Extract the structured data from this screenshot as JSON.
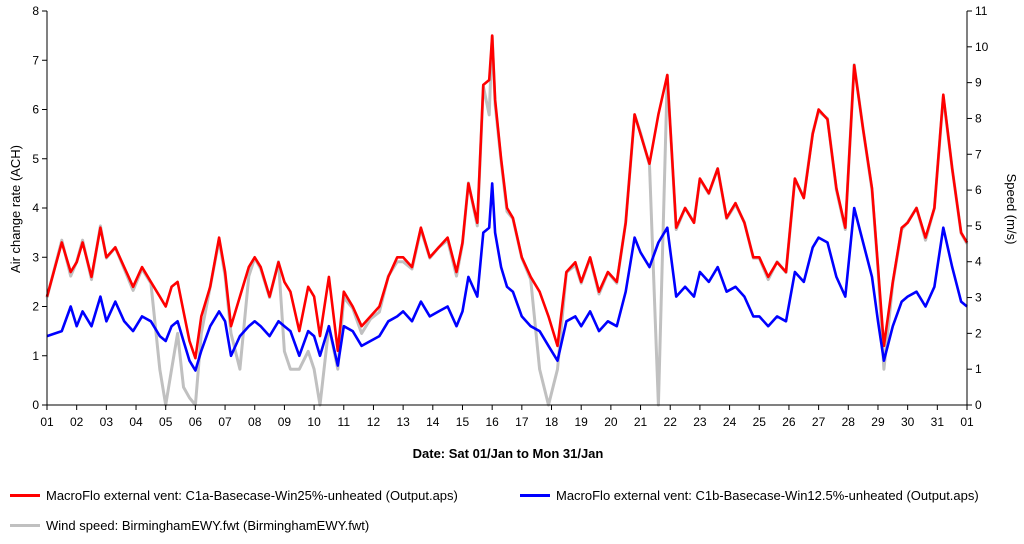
{
  "chart_data": {
    "type": "line",
    "xlabel": "Date: Sat 01/Jan to Mon 31/Jan",
    "ylabel_left": "Air change rate (ACH)",
    "ylabel_right": "Speed (m/s)",
    "ylim_left": [
      0,
      8
    ],
    "ylim_right": [
      0,
      11
    ],
    "yticks_left": [
      "0",
      "1",
      "2",
      "3",
      "4",
      "5",
      "6",
      "7",
      "8"
    ],
    "yticks_right": [
      "0",
      "1",
      "2",
      "3",
      "4",
      "5",
      "6",
      "7",
      "8",
      "9",
      "10",
      "11"
    ],
    "xticks": [
      "01",
      "02",
      "03",
      "04",
      "05",
      "06",
      "07",
      "08",
      "09",
      "10",
      "11",
      "12",
      "13",
      "14",
      "15",
      "16",
      "17",
      "18",
      "19",
      "20",
      "21",
      "22",
      "23",
      "24",
      "25",
      "26",
      "27",
      "28",
      "29",
      "30",
      "31",
      "01"
    ],
    "grid": false,
    "legend_position": "bottom",
    "series": [
      {
        "name": "MacroFlo external vent: C1a-Basecase-Win25%-unheated (Output.aps)",
        "color": "#ff0000",
        "axis": "left",
        "x": [
          0,
          0.5,
          0.8,
          1,
          1.2,
          1.5,
          1.8,
          2,
          2.3,
          2.6,
          2.9,
          3.2,
          3.5,
          3.8,
          4.0,
          4.2,
          4.4,
          4.6,
          4.8,
          5.0,
          5.2,
          5.5,
          5.8,
          6.0,
          6.2,
          6.5,
          6.8,
          7.0,
          7.2,
          7.5,
          7.8,
          8.0,
          8.2,
          8.5,
          8.8,
          9.0,
          9.2,
          9.5,
          9.8,
          10.0,
          10.3,
          10.6,
          10.9,
          11.2,
          11.5,
          11.8,
          12.0,
          12.3,
          12.6,
          12.9,
          13.2,
          13.5,
          13.8,
          14.0,
          14.2,
          14.5,
          14.7,
          14.9,
          15.0,
          15.1,
          15.3,
          15.5,
          15.7,
          16.0,
          16.3,
          16.6,
          16.9,
          17.2,
          17.5,
          17.8,
          18.0,
          18.3,
          18.6,
          18.9,
          19.2,
          19.5,
          19.8,
          20.0,
          20.3,
          20.6,
          20.9,
          21.2,
          21.5,
          21.8,
          22.0,
          22.3,
          22.6,
          22.9,
          23.2,
          23.5,
          23.8,
          24.0,
          24.3,
          24.6,
          24.9,
          25.2,
          25.5,
          25.8,
          26.0,
          26.3,
          26.6,
          26.9,
          27.2,
          27.5,
          27.8,
          28.0,
          28.2,
          28.5,
          28.8,
          29.0,
          29.3,
          29.6,
          29.9,
          30.2,
          30.5,
          30.8,
          31.0
        ],
        "y": [
          2.2,
          3.3,
          2.7,
          2.9,
          3.3,
          2.6,
          3.6,
          3.0,
          3.2,
          2.8,
          2.4,
          2.8,
          2.5,
          2.2,
          2.0,
          2.4,
          2.5,
          1.9,
          1.3,
          0.95,
          1.8,
          2.4,
          3.4,
          2.7,
          1.6,
          2.2,
          2.8,
          3.0,
          2.8,
          2.2,
          2.9,
          2.5,
          2.3,
          1.5,
          2.4,
          2.2,
          1.4,
          2.6,
          1.1,
          2.3,
          2.0,
          1.6,
          1.8,
          2.0,
          2.6,
          3.0,
          3.0,
          2.8,
          3.6,
          3.0,
          3.2,
          3.4,
          2.7,
          3.3,
          4.5,
          3.7,
          6.5,
          6.6,
          7.5,
          6.2,
          5.0,
          4.0,
          3.8,
          3.0,
          2.6,
          2.3,
          1.8,
          1.2,
          2.7,
          2.9,
          2.5,
          3.0,
          2.3,
          2.7,
          2.5,
          3.7,
          5.9,
          5.5,
          4.9,
          5.9,
          6.7,
          3.6,
          4.0,
          3.7,
          4.6,
          4.3,
          4.8,
          3.8,
          4.1,
          3.7,
          3.0,
          3.0,
          2.6,
          2.9,
          2.7,
          4.6,
          4.2,
          5.5,
          6.0,
          5.8,
          4.4,
          3.6,
          6.9,
          5.6,
          4.4,
          2.8,
          1.2,
          2.5,
          3.6,
          3.7,
          4.0,
          3.4,
          4.0,
          6.3,
          4.8,
          3.5,
          3.3
        ]
      },
      {
        "name": "MacroFlo external vent: C1b-Basecase-Win12.5%-unheated (Output.aps)",
        "color": "#0000ff",
        "axis": "left",
        "x": [
          0,
          0.5,
          0.8,
          1,
          1.2,
          1.5,
          1.8,
          2,
          2.3,
          2.6,
          2.9,
          3.2,
          3.5,
          3.8,
          4.0,
          4.2,
          4.4,
          4.6,
          4.8,
          5.0,
          5.2,
          5.5,
          5.8,
          6.0,
          6.2,
          6.5,
          6.8,
          7.0,
          7.2,
          7.5,
          7.8,
          8.0,
          8.2,
          8.5,
          8.8,
          9.0,
          9.2,
          9.5,
          9.8,
          10.0,
          10.3,
          10.6,
          10.9,
          11.2,
          11.5,
          11.8,
          12.0,
          12.3,
          12.6,
          12.9,
          13.2,
          13.5,
          13.8,
          14.0,
          14.2,
          14.5,
          14.7,
          14.9,
          15.0,
          15.1,
          15.3,
          15.5,
          15.7,
          16.0,
          16.3,
          16.6,
          16.9,
          17.2,
          17.5,
          17.8,
          18.0,
          18.3,
          18.6,
          18.9,
          19.2,
          19.5,
          19.8,
          20.0,
          20.3,
          20.6,
          20.9,
          21.2,
          21.5,
          21.8,
          22.0,
          22.3,
          22.6,
          22.9,
          23.2,
          23.5,
          23.8,
          24.0,
          24.3,
          24.6,
          24.9,
          25.2,
          25.5,
          25.8,
          26.0,
          26.3,
          26.6,
          26.9,
          27.2,
          27.5,
          27.8,
          28.0,
          28.2,
          28.5,
          28.8,
          29.0,
          29.3,
          29.6,
          29.9,
          30.2,
          30.5,
          30.8,
          31.0
        ],
        "y": [
          1.4,
          1.5,
          2.0,
          1.6,
          1.9,
          1.6,
          2.2,
          1.7,
          2.1,
          1.7,
          1.5,
          1.8,
          1.7,
          1.4,
          1.3,
          1.6,
          1.7,
          1.3,
          0.9,
          0.7,
          1.1,
          1.6,
          1.9,
          1.7,
          1.0,
          1.4,
          1.6,
          1.7,
          1.6,
          1.4,
          1.7,
          1.6,
          1.5,
          1.0,
          1.5,
          1.4,
          1.0,
          1.6,
          0.8,
          1.6,
          1.5,
          1.2,
          1.3,
          1.4,
          1.7,
          1.8,
          1.9,
          1.7,
          2.1,
          1.8,
          1.9,
          2.0,
          1.6,
          1.9,
          2.6,
          2.2,
          3.5,
          3.6,
          4.5,
          3.5,
          2.8,
          2.4,
          2.3,
          1.8,
          1.6,
          1.5,
          1.2,
          0.9,
          1.7,
          1.8,
          1.6,
          1.9,
          1.5,
          1.7,
          1.6,
          2.3,
          3.4,
          3.1,
          2.8,
          3.3,
          3.6,
          2.2,
          2.4,
          2.2,
          2.7,
          2.5,
          2.8,
          2.3,
          2.4,
          2.2,
          1.8,
          1.8,
          1.6,
          1.8,
          1.7,
          2.7,
          2.5,
          3.2,
          3.4,
          3.3,
          2.6,
          2.2,
          4.0,
          3.3,
          2.6,
          1.7,
          0.9,
          1.6,
          2.1,
          2.2,
          2.3,
          2.0,
          2.4,
          3.6,
          2.8,
          2.1,
          2.0
        ]
      },
      {
        "name": "Wind speed: BirminghamEWY.fwt (BirminghamEWY.fwt)",
        "color": "#c0c0c0",
        "axis": "right",
        "x": [
          0,
          0.5,
          0.8,
          1,
          1.2,
          1.5,
          1.8,
          2,
          2.3,
          2.6,
          2.9,
          3.2,
          3.5,
          3.8,
          4.0,
          4.2,
          4.4,
          4.6,
          4.8,
          5.0,
          5.2,
          5.5,
          5.8,
          6.0,
          6.2,
          6.5,
          6.8,
          7.0,
          7.2,
          7.5,
          7.8,
          8.0,
          8.2,
          8.5,
          8.8,
          9.0,
          9.2,
          9.5,
          9.8,
          10.0,
          10.3,
          10.6,
          10.9,
          11.2,
          11.5,
          11.8,
          12.0,
          12.3,
          12.6,
          12.9,
          13.2,
          13.5,
          13.8,
          14.0,
          14.2,
          14.5,
          14.7,
          14.9,
          15.0,
          15.1,
          15.3,
          15.5,
          15.7,
          16.0,
          16.3,
          16.6,
          16.9,
          17.2,
          17.5,
          17.8,
          18.0,
          18.3,
          18.6,
          18.9,
          19.2,
          19.5,
          19.8,
          20.0,
          20.3,
          20.6,
          20.9,
          21.2,
          21.5,
          21.8,
          22.0,
          22.3,
          22.6,
          22.9,
          23.2,
          23.5,
          23.8,
          24.0,
          24.3,
          24.6,
          24.9,
          25.2,
          25.5,
          25.8,
          26.0,
          26.3,
          26.6,
          26.9,
          27.2,
          27.5,
          27.8,
          28.0,
          28.2,
          28.5,
          28.8,
          29.0,
          29.3,
          29.6,
          29.9,
          30.2,
          30.5,
          30.8,
          31.0
        ],
        "y": [
          3.0,
          4.6,
          3.6,
          4.0,
          4.6,
          3.5,
          5.0,
          4.1,
          4.4,
          3.8,
          3.2,
          3.8,
          3.4,
          1.0,
          0.0,
          1.0,
          2.0,
          0.5,
          0.2,
          0.0,
          2.0,
          3.3,
          4.6,
          3.6,
          2.0,
          1.0,
          3.6,
          4.1,
          3.8,
          3.0,
          4.0,
          1.5,
          1.0,
          1.0,
          1.5,
          1.0,
          0.0,
          2.2,
          1.0,
          3.0,
          2.7,
          2.0,
          2.4,
          2.6,
          3.6,
          4.0,
          4.0,
          3.8,
          4.9,
          4.1,
          4.4,
          4.6,
          3.6,
          4.5,
          6.2,
          5.0,
          8.9,
          8.1,
          10.3,
          8.4,
          6.8,
          5.4,
          5.2,
          4.1,
          3.5,
          1.0,
          0.0,
          1.0,
          3.7,
          3.9,
          3.4,
          4.1,
          3.1,
          3.7,
          3.4,
          5.1,
          8.1,
          7.6,
          6.7,
          0.0,
          9.2,
          4.9,
          5.5,
          5.1,
          6.3,
          5.9,
          6.6,
          5.2,
          5.6,
          5.1,
          4.1,
          4.1,
          3.5,
          4.0,
          3.7,
          6.3,
          5.8,
          7.6,
          8.2,
          8.0,
          6.0,
          4.9,
          9.5,
          7.7,
          6.0,
          3.8,
          1.0,
          3.4,
          4.9,
          5.1,
          5.5,
          4.6,
          5.5,
          8.6,
          6.6,
          4.8,
          4.5
        ]
      }
    ]
  }
}
